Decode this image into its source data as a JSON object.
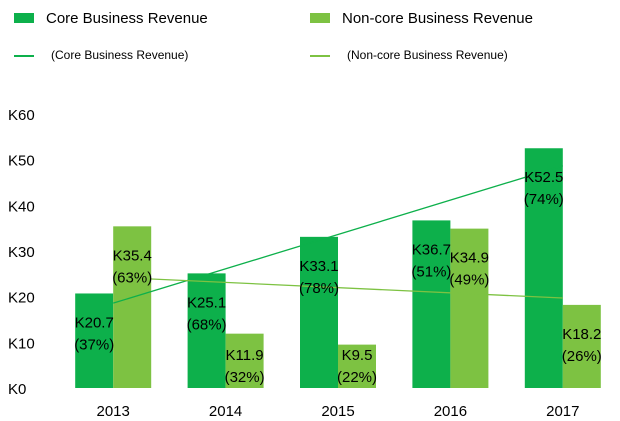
{
  "chart_data": {
    "type": "bar",
    "categories": [
      "2013",
      "2014",
      "2015",
      "2016",
      "2017"
    ],
    "series": [
      {
        "name": "Core Business Revenue",
        "color": "#0db04b",
        "values": [
          20.7,
          25.1,
          33.1,
          36.7,
          52.5
        ],
        "value_labels": [
          "K20.7",
          "K25.1",
          "K33.1",
          "K36.7",
          "K52.5"
        ],
        "share_labels": [
          "(37%)",
          "(68%)",
          "(78%)",
          "(51%)",
          "(74%)"
        ]
      },
      {
        "name": "Non-core Business Revenue",
        "color": "#7dc242",
        "values": [
          35.4,
          11.9,
          9.5,
          34.9,
          18.2
        ],
        "value_labels": [
          "K35.4",
          "K11.9",
          "K9.5",
          "K34.9",
          "K18.2"
        ],
        "share_labels": [
          "(63%)",
          "(32%)",
          "(22%)",
          "(49%)",
          "(26%)"
        ]
      }
    ],
    "trendlines": [
      {
        "name": "Linear",
        "label": "(Core Business Revenue)",
        "color": "#0db04b"
      },
      {
        "name": "Linear",
        "label": "(Non-core Business Revenue)",
        "color": "#7dc242"
      }
    ],
    "ylim": [
      0,
      60
    ],
    "yticks": [
      {
        "value": 0,
        "label": "K0"
      },
      {
        "value": 10,
        "label": "K10"
      },
      {
        "value": 20,
        "label": "K20"
      },
      {
        "value": 30,
        "label": "K30"
      },
      {
        "value": 40,
        "label": "K40"
      },
      {
        "value": 50,
        "label": "K50"
      },
      {
        "value": 60,
        "label": "K60"
      }
    ],
    "grid": false
  }
}
